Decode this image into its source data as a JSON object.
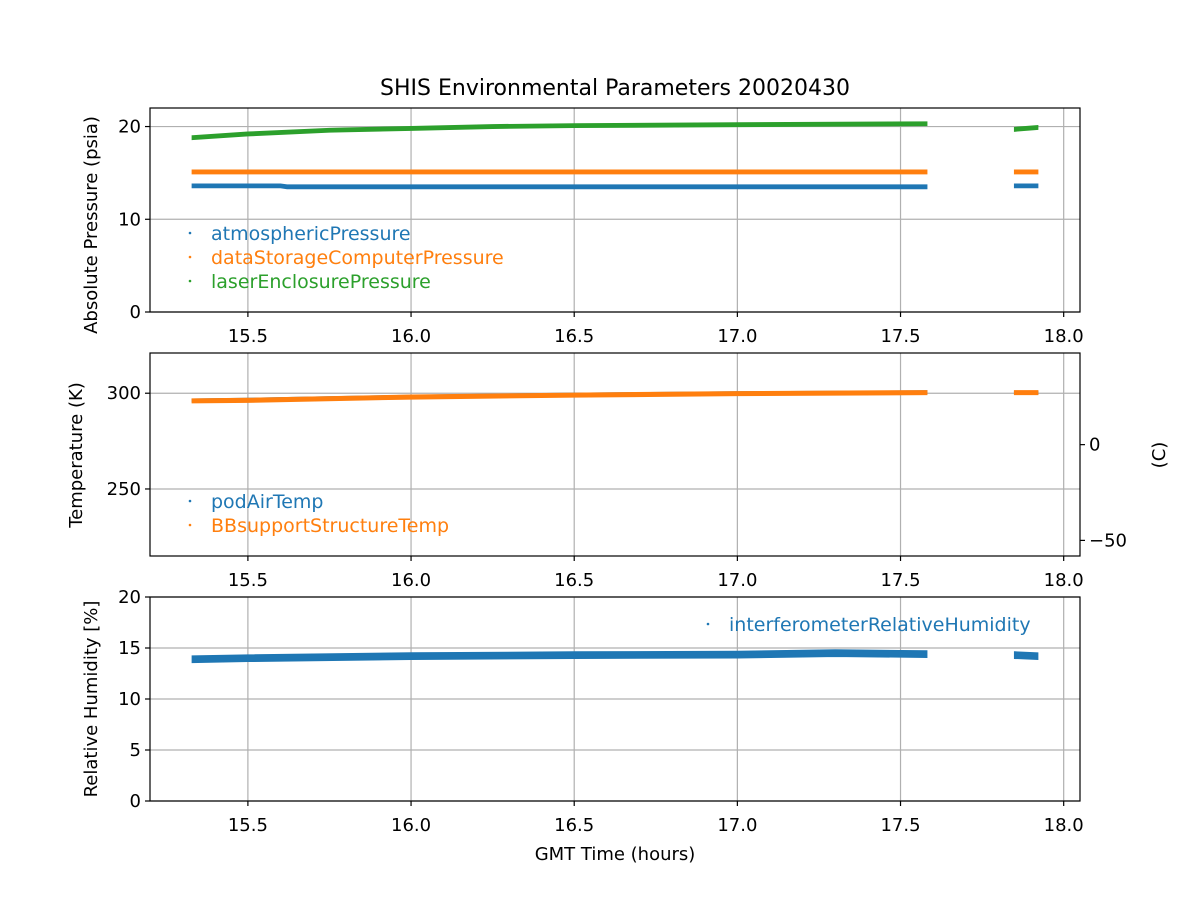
{
  "figure": {
    "title": "SHIS Environmental Parameters 20020430",
    "xlabel": "GMT Time (hours)"
  },
  "chart_data": [
    {
      "type": "scatter",
      "title": "SHIS Environmental Parameters 20020430",
      "ylabel": "Absolute Pressure (psia)",
      "xlim": [
        15.2,
        18.05
      ],
      "ylim": [
        0,
        22
      ],
      "xticks": [
        "15.5",
        "16.0",
        "16.5",
        "17.0",
        "17.5",
        "18.0"
      ],
      "yticks": [
        "0",
        "10",
        "20"
      ],
      "grid": true,
      "legend_position": "lower-left",
      "segments": [
        [
          15.33,
          17.58
        ],
        [
          17.85,
          17.92
        ]
      ],
      "series": [
        {
          "name": "atmosphericPressure",
          "color": "#1f77b4",
          "thickness": 0.35,
          "x": [
            15.33,
            15.6,
            15.62,
            16.0,
            16.5,
            17.0,
            17.58,
            17.85,
            17.92
          ],
          "y": [
            13.6,
            13.6,
            13.5,
            13.5,
            13.5,
            13.5,
            13.5,
            13.6,
            13.6
          ]
        },
        {
          "name": "dataStorageComputerPressure",
          "color": "#ff7f0e",
          "thickness": 0.35,
          "x": [
            15.33,
            16.0,
            16.5,
            17.0,
            17.58,
            17.85,
            17.92
          ],
          "y": [
            15.1,
            15.1,
            15.1,
            15.1,
            15.1,
            15.1,
            15.1
          ]
        },
        {
          "name": "laserEnclosurePressure",
          "color": "#2ca02c",
          "thickness": 0.35,
          "x": [
            15.33,
            15.5,
            15.75,
            16.0,
            16.25,
            16.5,
            17.0,
            17.58,
            17.85,
            17.92
          ],
          "y": [
            18.8,
            19.2,
            19.6,
            19.8,
            20.0,
            20.1,
            20.2,
            20.3,
            19.7,
            19.9
          ]
        }
      ]
    },
    {
      "type": "scatter",
      "ylabel": "Temperature (K)",
      "ylabel_right": "(C)",
      "xlim": [
        15.2,
        18.05
      ],
      "ylim": [
        215,
        321
      ],
      "xticks": [
        "15.5",
        "16.0",
        "16.5",
        "17.0",
        "17.5",
        "18.0"
      ],
      "yticks": [
        "250",
        "300"
      ],
      "right_yticks": [
        "−50",
        "0"
      ],
      "grid": true,
      "legend_position": "lower-left",
      "segments": [
        [
          15.33,
          17.58
        ],
        [
          17.85,
          17.92
        ]
      ],
      "series": [
        {
          "name": "podAirTemp",
          "color": "#1f77b4",
          "thickness": 1.2,
          "x": [
            15.33,
            15.5,
            16.0,
            16.5,
            17.0,
            17.58,
            17.85,
            17.92
          ],
          "y": [
            296.2,
            296.6,
            298.2,
            299.3,
            300.0,
            300.5,
            300.3,
            300.3
          ]
        },
        {
          "name": "BBsupportStructureTemp",
          "color": "#ff7f0e",
          "thickness": 1.8,
          "x": [
            15.33,
            15.5,
            16.0,
            16.5,
            17.0,
            17.58,
            17.85,
            17.92
          ],
          "y": [
            296.0,
            296.3,
            298.0,
            299.0,
            299.8,
            300.3,
            300.3,
            300.3
          ]
        }
      ]
    },
    {
      "type": "scatter",
      "ylabel": "Relative Humidity [%]",
      "xlabel": "GMT Time (hours)",
      "xlim": [
        15.2,
        18.05
      ],
      "ylim": [
        0,
        20
      ],
      "xticks": [
        "15.5",
        "16.0",
        "16.5",
        "17.0",
        "17.5",
        "18.0"
      ],
      "yticks": [
        "0",
        "5",
        "10",
        "15",
        "20"
      ],
      "grid": true,
      "legend_position": "upper-right",
      "segments": [
        [
          15.33,
          17.58
        ],
        [
          17.85,
          17.92
        ]
      ],
      "series": [
        {
          "name": "interferometerRelativeHumidity",
          "color": "#1f77b4",
          "thickness": 0.6,
          "x": [
            15.33,
            15.5,
            16.0,
            16.5,
            17.0,
            17.3,
            17.58,
            17.85,
            17.92
          ],
          "y": [
            13.9,
            14.0,
            14.2,
            14.3,
            14.35,
            14.5,
            14.4,
            14.3,
            14.2
          ]
        }
      ]
    }
  ]
}
